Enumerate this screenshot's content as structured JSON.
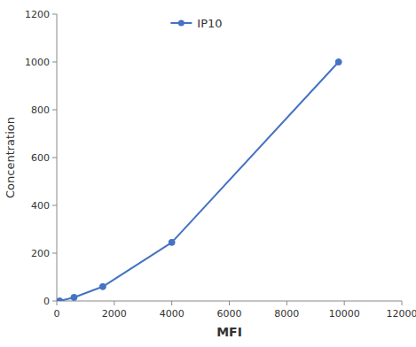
{
  "chart_data": {
    "type": "line",
    "x": [
      100,
      600,
      1600,
      4000,
      9800
    ],
    "series": [
      {
        "name": "IP10",
        "color": "#4472C4",
        "marker": "circle",
        "values": [
          0,
          15,
          60,
          245,
          1000
        ]
      }
    ],
    "xlabel": "MFI",
    "ylabel": "Concentration",
    "xlim": [
      0,
      12000
    ],
    "ylim": [
      0,
      1200
    ],
    "xticks": [
      0,
      2000,
      4000,
      6000,
      8000,
      10000,
      12000
    ],
    "yticks": [
      0,
      200,
      400,
      600,
      800,
      1000,
      1200
    ],
    "grid": false,
    "legend": "top"
  }
}
